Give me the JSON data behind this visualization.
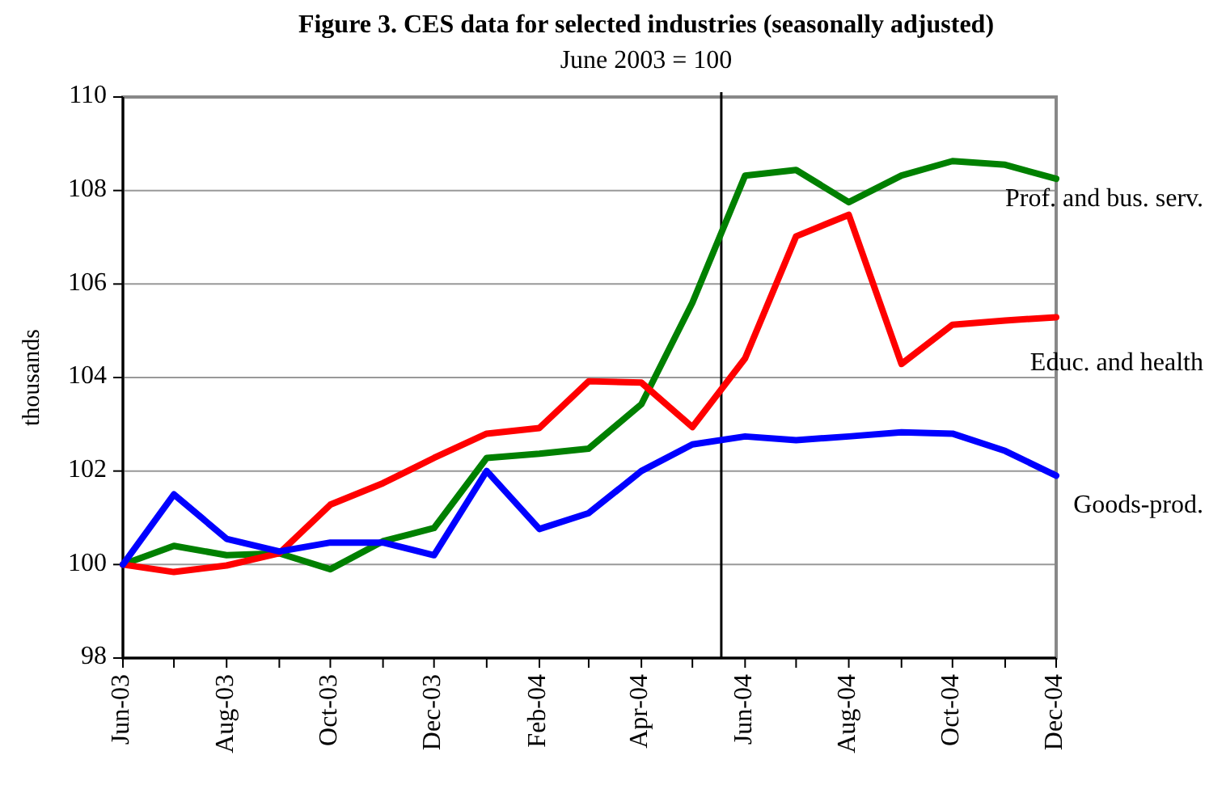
{
  "chart_data": {
    "type": "line",
    "title": "Figure 3. CES data for selected industries (seasonally adjusted)",
    "subtitle": "June 2003 = 100",
    "ylabel": "thousands",
    "x": [
      "2003-06",
      "2003-07",
      "2003-08",
      "2003-09",
      "2003-10",
      "2003-11",
      "2003-12",
      "2004-01",
      "2004-02",
      "2004-03",
      "2004-04",
      "2004-05",
      "2004-06",
      "2004-07",
      "2004-08",
      "2004-09",
      "2004-10",
      "2004-11",
      "2004-12"
    ],
    "xlim": [
      "2003-06",
      "2004-12"
    ],
    "xticks": [
      {
        "value": "2003-06",
        "label": "Jun-03"
      },
      {
        "value": "2003-08",
        "label": "Aug-03"
      },
      {
        "value": "2003-10",
        "label": "Oct-03"
      },
      {
        "value": "2003-12",
        "label": "Dec-03"
      },
      {
        "value": "2004-02",
        "label": "Feb-04"
      },
      {
        "value": "2004-04",
        "label": "Apr-04"
      },
      {
        "value": "2004-06",
        "label": "Jun-04"
      },
      {
        "value": "2004-08",
        "label": "Aug-04"
      },
      {
        "value": "2004-10",
        "label": "Oct-04"
      },
      {
        "value": "2004-12",
        "label": "Dec-04"
      }
    ],
    "ylim": [
      98,
      110
    ],
    "yticks": [
      98,
      100,
      102,
      104,
      106,
      108,
      110
    ],
    "grid": "y",
    "marker": "none",
    "line_style": "solid",
    "ref_lines": [
      {
        "axis": "x",
        "value": "2004-05-18",
        "color": "#000000"
      }
    ],
    "series": [
      {
        "name": "Prof. and bus. serv.",
        "color": "#008000",
        "values": [
          100.0,
          100.4,
          100.2,
          100.24,
          99.9,
          100.5,
          100.78,
          102.28,
          102.37,
          102.48,
          103.43,
          105.6,
          108.32,
          108.44,
          107.75,
          108.32,
          108.63,
          108.55,
          108.25
        ]
      },
      {
        "name": "Educ. and health",
        "color": "#ff0000",
        "values": [
          100.0,
          99.84,
          99.98,
          100.24,
          101.28,
          101.74,
          102.28,
          102.8,
          102.92,
          103.92,
          103.89,
          102.94,
          104.41,
          107.02,
          107.48,
          104.29,
          105.13,
          105.22,
          105.29
        ]
      },
      {
        "name": "Goods-prod.",
        "color": "#0000ff",
        "values": [
          100.0,
          101.5,
          100.55,
          100.28,
          100.47,
          100.47,
          100.2,
          102.0,
          100.76,
          101.1,
          102.0,
          102.57,
          102.74,
          102.66,
          102.74,
          102.83,
          102.8,
          102.43,
          101.9
        ]
      }
    ]
  }
}
